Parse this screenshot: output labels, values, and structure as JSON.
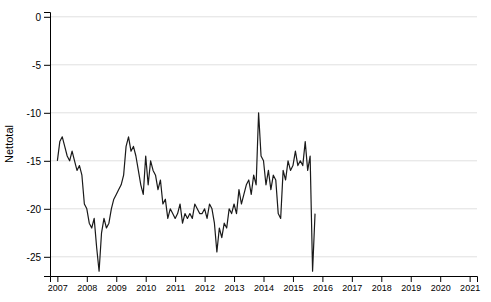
{
  "chart_data": {
    "type": "line",
    "ylabel": "Nettotal",
    "color": "#1a1a1a",
    "grid": true,
    "xlim": [
      2006.75,
      2021.25
    ],
    "xticks": [
      2007,
      2008,
      2009,
      2010,
      2011,
      2012,
      2013,
      2014,
      2015,
      2016,
      2017,
      2018,
      2019,
      2020,
      2021
    ],
    "ylim": [
      -27,
      0.5
    ],
    "yticks": [
      0,
      -5,
      -10,
      -15,
      -20,
      -25
    ],
    "x": [
      2007,
      2007.0833333333333,
      2007.1666666666667,
      2007.25,
      2007.3333333333333,
      2007.4166666666667,
      2007.5,
      2007.5833333333333,
      2007.6666666666667,
      2007.75,
      2007.8333333333333,
      2007.9166666666667,
      2008,
      2008.0833333333333,
      2008.1666666666667,
      2008.25,
      2008.3333333333333,
      2008.4166666666667,
      2008.5,
      2008.5833333333333,
      2008.6666666666667,
      2008.75,
      2008.8333333333333,
      2008.9166666666667,
      2009,
      2009.0833333333333,
      2009.1666666666667,
      2009.25,
      2009.3333333333333,
      2009.4166666666667,
      2009.5,
      2009.5833333333333,
      2009.6666666666667,
      2009.75,
      2009.8333333333333,
      2009.9166666666667,
      2010,
      2010.0833333333333,
      2010.1666666666667,
      2010.25,
      2010.3333333333333,
      2010.4166666666667,
      2010.5,
      2010.5833333333333,
      2010.6666666666667,
      2010.75,
      2010.8333333333333,
      2010.9166666666667,
      2011,
      2011.0833333333333,
      2011.1666666666667,
      2011.25,
      2011.3333333333333,
      2011.4166666666667,
      2011.5,
      2011.5833333333333,
      2011.6666666666667,
      2011.75,
      2011.8333333333333,
      2011.9166666666667,
      2012,
      2012.0833333333333,
      2012.1666666666667,
      2012.25,
      2012.3333333333333,
      2012.4166666666667,
      2012.5,
      2012.5833333333333,
      2012.6666666666667,
      2012.75,
      2012.8333333333333,
      2012.9166666666667,
      2013,
      2013.0833333333333,
      2013.1666666666667,
      2013.25,
      2013.3333333333333,
      2013.4166666666667,
      2013.5,
      2013.5833333333333,
      2013.6666666666667,
      2013.75,
      2013.8333333333333,
      2013.9166666666667,
      2014,
      2014.0833333333333,
      2014.1666666666667,
      2014.25,
      2014.3333333333333,
      2014.4166666666667,
      2014.5,
      2014.5833333333333,
      2014.6666666666667,
      2014.75,
      2014.8333333333333,
      2014.9166666666667,
      2015,
      2015.0833333333333,
      2015.1666666666667,
      2015.25,
      2015.3333333333333,
      2015.4166666666667,
      2015.5,
      2015.5833333333333,
      2015.6666666666667,
      2015.75
    ],
    "values": [
      -15.0,
      -13.0,
      -12.5,
      -13.5,
      -14.5,
      -15.0,
      -14.0,
      -15.0,
      -16.0,
      -15.5,
      -16.5,
      -19.5,
      -20.0,
      -21.5,
      -22.0,
      -21.0,
      -24.0,
      -26.5,
      -22.5,
      -21.0,
      -22.0,
      -21.5,
      -20.0,
      -19.0,
      -18.5,
      -18.0,
      -17.5,
      -16.5,
      -13.5,
      -12.5,
      -14.0,
      -13.5,
      -14.5,
      -16.0,
      -17.5,
      -18.5,
      -14.5,
      -17.5,
      -15.0,
      -16.0,
      -16.5,
      -18.0,
      -17.0,
      -19.5,
      -19.0,
      -21.0,
      -20.0,
      -20.5,
      -21.0,
      -20.5,
      -19.5,
      -21.5,
      -20.5,
      -21.0,
      -20.5,
      -21.0,
      -19.5,
      -20.0,
      -20.5,
      -20.5,
      -20.0,
      -21.0,
      -19.5,
      -20.0,
      -21.5,
      -24.5,
      -22.0,
      -23.0,
      -21.5,
      -22.0,
      -20.0,
      -20.5,
      -19.5,
      -20.5,
      -18.0,
      -19.5,
      -18.5,
      -17.5,
      -17.0,
      -18.5,
      -16.5,
      -17.5,
      -10.0,
      -14.5,
      -15.0,
      -17.5,
      -16.0,
      -18.0,
      -16.5,
      -17.0,
      -20.5,
      -21.0,
      -16.0,
      -17.0,
      -15.0,
      -16.0,
      -15.5,
      -14.0,
      -15.5,
      -15.0,
      -15.5,
      -13.0,
      -16.0,
      -14.5,
      -26.5,
      -20.5
    ]
  }
}
